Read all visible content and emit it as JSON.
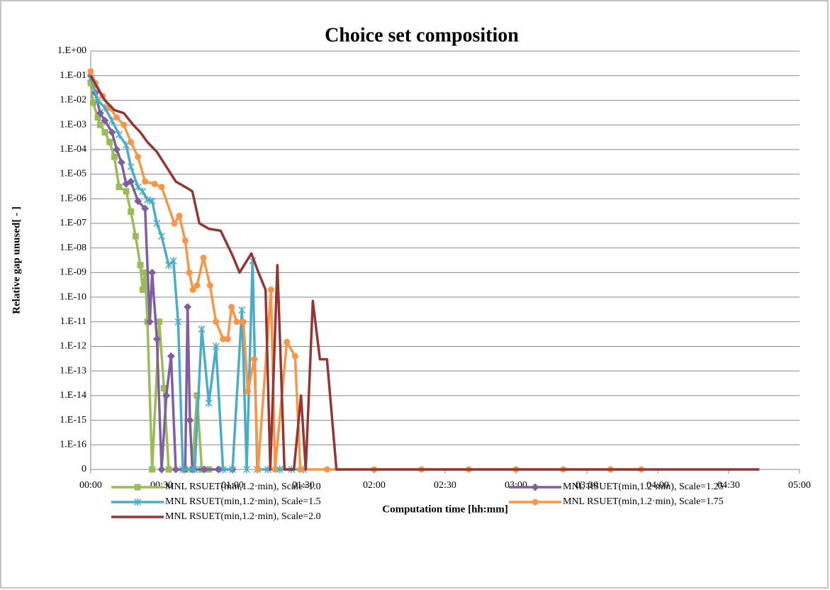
{
  "chart_data": {
    "type": "line",
    "title": "Choice set composition",
    "x_label": "Computation time [hh:mm]",
    "y_label": "Relative gap unused[ - ]",
    "log_y": true,
    "grid": true,
    "xlim": [
      0,
      300
    ],
    "xticks": [
      {
        "value": 0,
        "label": "00:00"
      },
      {
        "value": 30,
        "label": "00:30"
      },
      {
        "value": 60,
        "label": "01:00"
      },
      {
        "value": 90,
        "label": "01:30"
      },
      {
        "value": 120,
        "label": "02:00"
      },
      {
        "value": 150,
        "label": "02:30"
      },
      {
        "value": 180,
        "label": "03:00"
      },
      {
        "value": 210,
        "label": "03:30"
      },
      {
        "value": 240,
        "label": "04:00"
      },
      {
        "value": 270,
        "label": "04:30"
      },
      {
        "value": 300,
        "label": "05:00"
      }
    ],
    "ylim": [
      0,
      1
    ],
    "yticks": [
      {
        "value": 1,
        "label": "1.E+00"
      },
      {
        "value": 0.1,
        "label": "1.E-01"
      },
      {
        "value": 0.01,
        "label": "1.E-02"
      },
      {
        "value": 0.001,
        "label": "1.E-03"
      },
      {
        "value": 0.0001,
        "label": "1.E-04"
      },
      {
        "value": 1e-05,
        "label": "1.E-05"
      },
      {
        "value": 1e-06,
        "label": "1.E-06"
      },
      {
        "value": 1e-07,
        "label": "1.E-07"
      },
      {
        "value": 1e-08,
        "label": "1.E-08"
      },
      {
        "value": 1e-09,
        "label": "1.E-09"
      },
      {
        "value": 1e-10,
        "label": "1.E-10"
      },
      {
        "value": 1e-11,
        "label": "1.E-11"
      },
      {
        "value": 1e-12,
        "label": "1.E-12"
      },
      {
        "value": 1e-13,
        "label": "1.E-13"
      },
      {
        "value": 1e-14,
        "label": "1.E-14"
      },
      {
        "value": 1e-15,
        "label": "1.E-15"
      },
      {
        "value": 1e-16,
        "label": "1.E-16"
      },
      0
    ],
    "series": [
      {
        "name": "MNL RSUET(min,1.2·min), Scale=1.0",
        "color": "#9bbb59",
        "marker": "square",
        "x": [
          0,
          1,
          3,
          4,
          6,
          8,
          10,
          12,
          15,
          17,
          19,
          21,
          22,
          23,
          24,
          26,
          29,
          31,
          33,
          40,
          43,
          45,
          47,
          50
        ],
        "values": [
          0.05,
          0.008,
          0.002,
          0.001,
          0.0005,
          0.0002,
          5e-05,
          3e-06,
          2e-06,
          3e-07,
          3e-08,
          2e-09,
          2e-10,
          1e-09,
          1e-11,
          0,
          1e-11,
          2e-14,
          0,
          0,
          0,
          1e-14,
          0,
          0
        ]
      },
      {
        "name": "MNL RSUET(min,1.2·min), Scale=1.25",
        "color": "#7f5fa0",
        "marker": "diamond",
        "x": [
          0,
          2,
          4,
          6,
          9,
          11,
          13,
          15,
          17,
          20,
          23,
          25,
          26,
          28,
          30,
          32,
          34,
          36,
          40,
          41,
          42,
          43,
          48,
          54,
          60
        ],
        "values": [
          0.1,
          0.02,
          0.003,
          0.0015,
          0.0005,
          0.0001,
          3e-05,
          4e-06,
          5e-06,
          8e-07,
          4e-07,
          1e-11,
          1e-09,
          2e-12,
          0,
          1e-14,
          4e-13,
          0,
          0,
          4e-11,
          1e-15,
          0,
          0,
          0,
          0
        ]
      },
      {
        "name": "MNL RSUET(min,1.2·min), Scale=1.5",
        "color": "#4bacc6",
        "marker": "star",
        "x": [
          0,
          3,
          6,
          9,
          12,
          15,
          17,
          20,
          22,
          24,
          26,
          28,
          30,
          33,
          35,
          37,
          39,
          44,
          47,
          50,
          53,
          56,
          60,
          64,
          66,
          68.5,
          70.5,
          75,
          80,
          85,
          90
        ],
        "values": [
          0.08,
          0.01,
          0.005,
          0.0015,
          0.0004,
          0.00015,
          2e-05,
          3e-06,
          2e-06,
          9e-07,
          8e-07,
          1e-07,
          3e-08,
          2e-09,
          3e-09,
          1e-11,
          0,
          0,
          5e-12,
          5e-15,
          1e-12,
          0,
          0,
          3e-11,
          0,
          3e-09,
          0,
          0,
          0,
          0,
          0
        ]
      },
      {
        "name": "MNL RSUET(min,1.2·min), Scale=1.75",
        "color": "#f79646",
        "marker": "circle",
        "x": [
          0,
          2,
          5,
          8,
          11,
          14,
          17,
          20,
          23,
          27,
          30,
          35.4,
          37.5,
          40,
          41.7,
          43.3,
          45,
          47.7,
          50.5,
          53,
          56,
          58,
          59.6,
          61.8,
          64.6,
          66.5,
          69.2,
          70.8,
          76.3,
          78,
          83,
          86.5,
          88.7,
          100,
          120,
          140,
          160,
          180,
          200,
          220,
          233
        ],
        "values": [
          0.15,
          0.05,
          0.015,
          0.005,
          0.002,
          0.001,
          0.0002,
          5e-05,
          5e-06,
          4e-06,
          3e-06,
          1e-07,
          2e-07,
          2e-08,
          1e-09,
          2e-10,
          3e-10,
          4e-09,
          3e-10,
          1e-11,
          2e-12,
          2e-12,
          4e-11,
          1e-11,
          1e-11,
          1.5e-14,
          3e-13,
          0,
          2e-10,
          0,
          1.5e-12,
          4e-13,
          0,
          0,
          0,
          0,
          0,
          0,
          0,
          0,
          0
        ]
      },
      {
        "name": "MNL RSUET(min,1.2·min), Scale=2.0",
        "color": "#943634",
        "marker": "none",
        "x": [
          0,
          3,
          6,
          10,
          14,
          18,
          21,
          24,
          28,
          32,
          36,
          40,
          43,
          46,
          50,
          55,
          60,
          63,
          68,
          71,
          74,
          76,
          79,
          82,
          86,
          89,
          91,
          94,
          97,
          100,
          104,
          150,
          200,
          283
        ],
        "values": [
          0.1,
          0.03,
          0.01,
          0.004,
          0.003,
          0.001,
          0.0005,
          0.0002,
          8e-05,
          2e-05,
          5e-06,
          3e-06,
          2e-06,
          1e-07,
          6e-08,
          5e-08,
          5e-09,
          1e-09,
          6e-09,
          1e-09,
          2e-10,
          0,
          2e-09,
          0,
          0,
          1e-14,
          0,
          7e-11,
          3e-13,
          3e-13,
          0,
          0,
          0,
          0
        ]
      }
    ]
  }
}
